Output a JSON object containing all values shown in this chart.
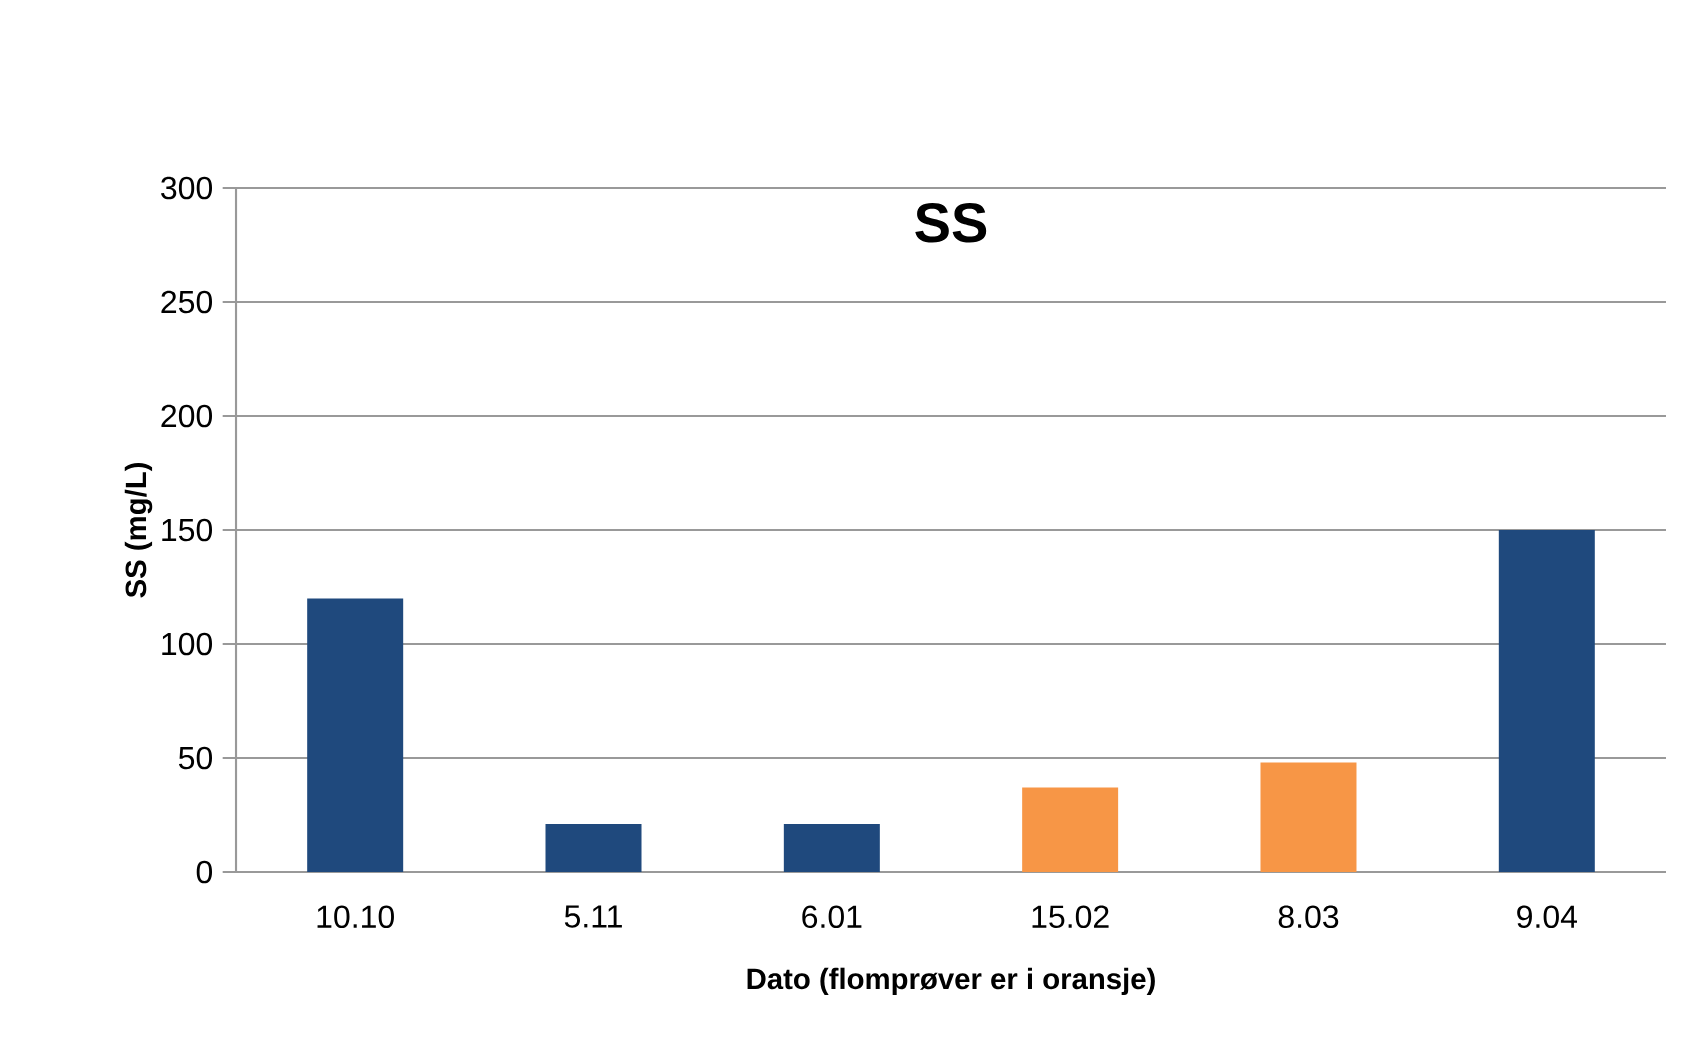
{
  "chart_data": {
    "type": "bar",
    "title": "SS",
    "xlabel": "Dato (flomprøver er i oransje)",
    "ylabel": "SS (mg/L)",
    "categories": [
      "10.10",
      "5.11",
      "6.01",
      "15.02",
      "8.03",
      "9.04"
    ],
    "values": [
      120,
      21,
      21,
      37,
      48,
      150
    ],
    "colors": [
      "#1f497d",
      "#1f497d",
      "#1f497d",
      "#f79646",
      "#f79646",
      "#1f497d"
    ],
    "ylim": [
      0,
      300
    ],
    "yticks": [
      0,
      50,
      100,
      150,
      200,
      250,
      300
    ],
    "grid": "y"
  }
}
